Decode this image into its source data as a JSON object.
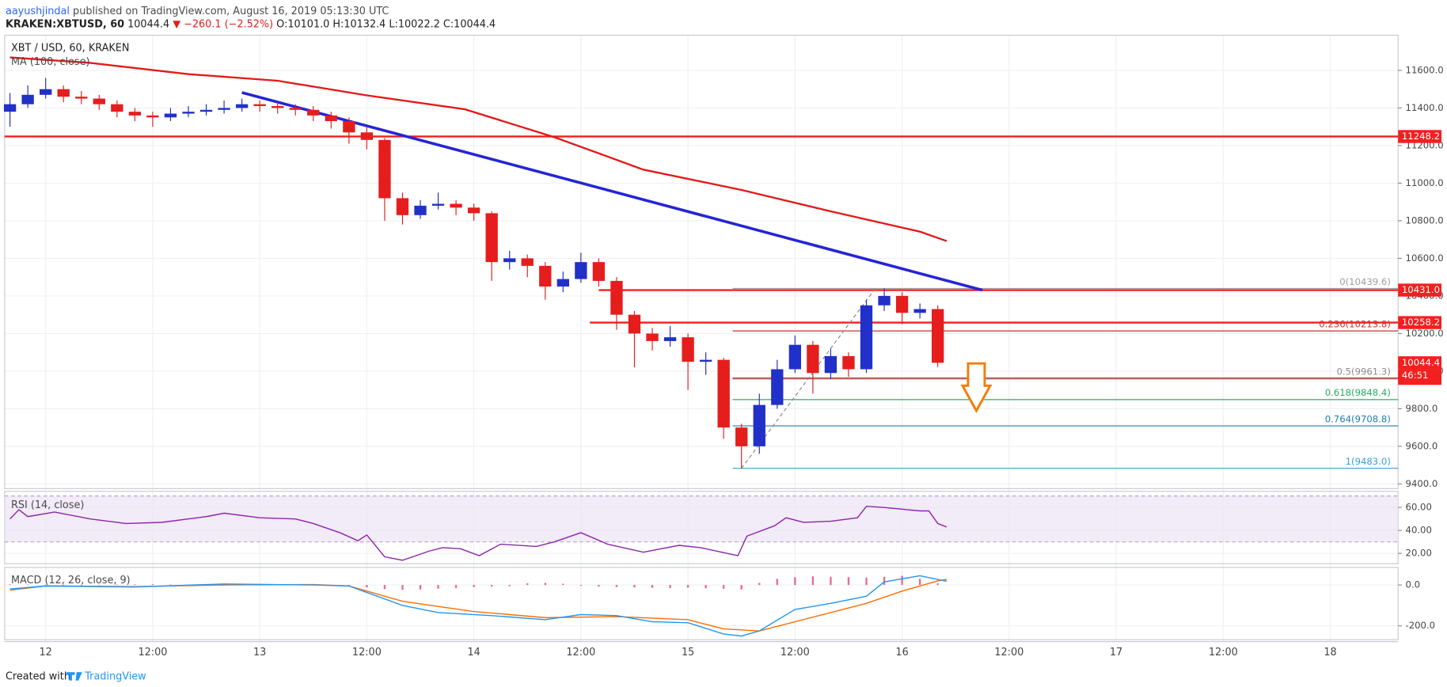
{
  "header": {
    "author": "aayushjindal",
    "published": "published on TradingView.com, August 16, 2019 05:13:30 UTC",
    "symbol": "KRAKEN:XBTUSD, 60",
    "last": "10044.4",
    "change": "▼ −260.1 (−2.52%)",
    "ohlc": "O:10101.0 H:10132.4 L:10022.2 C:10044.4"
  },
  "chart_data": {
    "type": "candlestick",
    "title": "XBT / USD, 60, KRAKEN",
    "xlim": [
      -4.6,
      151.6
    ],
    "xticks": [
      {
        "value": 0,
        "label": "12"
      },
      {
        "value": 12,
        "label": "12:00"
      },
      {
        "value": 24,
        "label": "13"
      },
      {
        "value": 36,
        "label": "12:00"
      },
      {
        "value": 48,
        "label": "14"
      },
      {
        "value": 60,
        "label": "12:00"
      },
      {
        "value": 72,
        "label": "15"
      },
      {
        "value": 84,
        "label": "12:00"
      },
      {
        "value": 96,
        "label": "16"
      },
      {
        "value": 108,
        "label": "12:00"
      },
      {
        "value": 120,
        "label": "17"
      },
      {
        "value": 132,
        "label": "12:00"
      },
      {
        "value": 144,
        "label": "18"
      }
    ],
    "ylim": [
      9375,
      11787
    ],
    "yticks": [
      {
        "value": 9400,
        "label": "9400.0"
      },
      {
        "value": 9600,
        "label": "9600.0"
      },
      {
        "value": 9800,
        "label": "9800.0"
      },
      {
        "value": 10000,
        "label": "10000.0"
      },
      {
        "value": 10200,
        "label": "10200.0"
      },
      {
        "value": 10400,
        "label": "10400.0"
      },
      {
        "value": 10600,
        "label": "10600.0"
      },
      {
        "value": 10800,
        "label": "10800.0"
      },
      {
        "value": 11000,
        "label": "11000.0"
      },
      {
        "value": 11200,
        "label": "11200.0"
      },
      {
        "value": 11400,
        "label": "11400.0"
      },
      {
        "value": 11600,
        "label": "11600.0"
      }
    ],
    "grid": true,
    "up_color": "#2130c8",
    "down_color": "#e51d1d",
    "candles": {
      "x": [
        -4,
        -2,
        0,
        2,
        4,
        6,
        8,
        10,
        12,
        14,
        16,
        18,
        20,
        22,
        24,
        26,
        28,
        30,
        32,
        34,
        36,
        38,
        40,
        42,
        44,
        46,
        48,
        50,
        52,
        54,
        56,
        58,
        60,
        62,
        64,
        66,
        68,
        70,
        72,
        74,
        76,
        78,
        80,
        82,
        84,
        86,
        88,
        90,
        92,
        94,
        96,
        98,
        100
      ],
      "open": [
        11380,
        11420,
        11470,
        11500,
        11460,
        11450,
        11420,
        11380,
        11360,
        11350,
        11370,
        11380,
        11390,
        11400,
        11420,
        11410,
        11400,
        11390,
        11360,
        11330,
        11270,
        11230,
        10920,
        10830,
        10880,
        10890,
        10870,
        10840,
        10580,
        10600,
        10560,
        10450,
        10490,
        10580,
        10480,
        10300,
        10200,
        10160,
        10180,
        10050,
        10060,
        9700,
        9600,
        9820,
        10010,
        10140,
        9990,
        10080,
        10010,
        10350,
        10400,
        10310,
        10330
      ],
      "high": [
        11480,
        11520,
        11560,
        11520,
        11490,
        11470,
        11440,
        11400,
        11380,
        11400,
        11410,
        11420,
        11440,
        11450,
        11440,
        11430,
        11420,
        11410,
        11380,
        11350,
        11300,
        11240,
        10950,
        10910,
        10950,
        10910,
        10890,
        10850,
        10640,
        10620,
        10580,
        10530,
        10630,
        10600,
        10500,
        10320,
        10230,
        10240,
        10200,
        10100,
        10070,
        9720,
        9880,
        10060,
        10190,
        10160,
        10120,
        10100,
        10380,
        10439.6,
        10420,
        10360,
        10350
      ],
      "low": [
        11300,
        11400,
        11450,
        11430,
        11420,
        11390,
        11350,
        11330,
        11300,
        11330,
        11350,
        11360,
        11370,
        11380,
        11380,
        11370,
        11360,
        11330,
        11290,
        11210,
        11180,
        10800,
        10780,
        10810,
        10860,
        10830,
        10800,
        10480,
        10540,
        10500,
        10380,
        10420,
        10470,
        10450,
        10220,
        10020,
        10110,
        10130,
        9900,
        9980,
        9640,
        9483,
        9560,
        9800,
        9990,
        9880,
        9960,
        9970,
        9990,
        10320,
        10250,
        10280,
        10022.2
      ],
      "close": [
        11420,
        11470,
        11500,
        11460,
        11450,
        11420,
        11380,
        11360,
        11350,
        11370,
        11380,
        11390,
        11400,
        11420,
        11410,
        11400,
        11390,
        11360,
        11330,
        11270,
        11230,
        10920,
        10830,
        10880,
        10890,
        10870,
        10840,
        10580,
        10600,
        10560,
        10450,
        10490,
        10580,
        10480,
        10300,
        10200,
        10160,
        10180,
        10050,
        10060,
        9700,
        9600,
        9820,
        10010,
        10140,
        9990,
        10080,
        10010,
        10350,
        10400,
        10310,
        10330,
        10044.4
      ]
    },
    "ma": {
      "name": "MA (100, close)",
      "color": "#e31a1a",
      "x": [
        -4,
        5,
        16,
        26,
        36,
        47,
        57,
        67,
        78,
        88,
        98,
        101
      ],
      "values": [
        11669,
        11640,
        11580,
        11545,
        11467,
        11393,
        11245,
        11072,
        10964,
        10850,
        10742,
        10692
      ]
    },
    "trendline": {
      "color": "#2424d8",
      "x": [
        22,
        105
      ],
      "values": [
        11482,
        10431
      ]
    },
    "levels": [
      {
        "value": 11248.2
      },
      {
        "value": 10431.0,
        "label": "10431.0",
        "x_start": 62
      },
      {
        "value": 10258.2,
        "x_start": 61
      },
      {
        "value": 9961.3,
        "x_start": 77
      }
    ],
    "level_color": "#f41f1f",
    "last_price": {
      "value": 10044.4,
      "countdown": "46:51"
    },
    "fib": {
      "x_start": 77,
      "anchor_x": [
        78,
        93
      ],
      "levels": [
        {
          "price": 10439.6,
          "label": "0(10439.6)",
          "color": "#9e9e9e"
        },
        {
          "price": 10213.8,
          "label": "0.236(10213.8)",
          "color": "#c0392b"
        },
        {
          "price": 9961.3,
          "label": "0.5(9961.3)",
          "color": "#8d8d8d"
        },
        {
          "price": 9848.4,
          "label": "0.618(9848.4)",
          "color": "#27ae60"
        },
        {
          "price": 9708.8,
          "label": "0.764(9708.8)",
          "color": "#1f7fa8"
        },
        {
          "price": 9483.0,
          "label": "1(9483.0)",
          "color": "#3b9bd6"
        }
      ]
    },
    "rsi": {
      "name": "RSI (14, close)",
      "color": "#8e24aa",
      "ylim": [
        11,
        74
      ],
      "band": [
        30,
        70
      ],
      "yticks": [
        {
          "value": 20,
          "label": "20.00"
        },
        {
          "value": 40,
          "label": "40.00"
        },
        {
          "value": 60,
          "label": "60.00"
        }
      ],
      "x": [
        -4,
        -3,
        -2,
        1,
        5,
        9,
        13,
        18,
        20,
        24,
        28,
        30,
        33,
        35,
        36,
        38,
        40,
        43,
        44.5,
        46.5,
        48.6,
        51,
        55,
        57,
        60,
        63,
        67,
        71,
        73.4,
        77.6,
        78.6,
        81.7,
        83,
        85,
        88,
        91,
        92,
        94,
        98,
        99,
        100,
        101
      ],
      "values": [
        50,
        58,
        52,
        56,
        50,
        46,
        47,
        52,
        55,
        51,
        50,
        46,
        38,
        31,
        36,
        17,
        14,
        22,
        25,
        24,
        18,
        28,
        26,
        30,
        38,
        28,
        21,
        27,
        25,
        18,
        35,
        44,
        51,
        47,
        48,
        51,
        61,
        60,
        57,
        57,
        46,
        43
      ]
    },
    "macd": {
      "name": "MACD (12, 26, close, 9)",
      "ylim": [
        -268,
        86
      ],
      "yticks": [
        {
          "value": -200,
          "label": "-200.0"
        },
        {
          "value": 0,
          "label": "0.0"
        }
      ],
      "hist_color": "#ec407a",
      "histogram": [
        3,
        2,
        1,
        -2,
        -3,
        1,
        2,
        3,
        4,
        2,
        1,
        -1,
        -3,
        -2,
        1,
        2,
        3,
        2,
        -1,
        -4,
        -12,
        -20,
        -24,
        -22,
        -18,
        -15,
        -10,
        -8,
        -6,
        8,
        10,
        6,
        -4,
        -8,
        -10,
        -12,
        -14,
        -15,
        -13,
        -16,
        -18,
        -22,
        10,
        30,
        38,
        42,
        40,
        38,
        36,
        40,
        45,
        30,
        8
      ],
      "macd_line": {
        "color": "#2196f3",
        "x": [
          -4,
          0,
          10,
          20,
          30,
          34,
          40,
          44,
          50,
          56,
          60,
          64,
          68,
          72,
          76,
          78,
          80,
          84,
          88,
          92,
          94,
          98,
          101
        ],
        "values": [
          -20,
          -5,
          -10,
          5,
          0,
          -5,
          -100,
          -135,
          -150,
          -170,
          -145,
          -150,
          -180,
          -185,
          -240,
          -250,
          -225,
          -120,
          -90,
          -55,
          15,
          45,
          18
        ]
      },
      "signal_line": {
        "color": "#ff6d00",
        "x": [
          -4,
          0,
          10,
          20,
          30,
          34,
          40,
          48,
          56,
          64,
          72,
          76,
          80,
          84,
          88,
          92,
          96,
          100,
          101
        ],
        "values": [
          -25,
          -5,
          -8,
          0,
          2,
          -5,
          -80,
          -130,
          -160,
          -155,
          -170,
          -215,
          -225,
          -180,
          -135,
          -90,
          -30,
          20,
          27
        ]
      }
    }
  },
  "footer": {
    "created": "Created with",
    "brand": "TradingView"
  }
}
